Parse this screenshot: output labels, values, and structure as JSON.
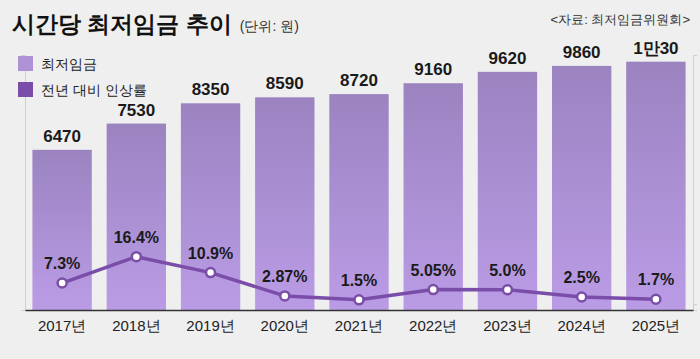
{
  "chart_data": {
    "type": "bar",
    "title": "시간당 최저임금 추이",
    "subtitle": "(단위: 원)",
    "source": "<자료: 최저임금위원회>",
    "categories": [
      "2017년",
      "2018년",
      "2019년",
      "2020년",
      "2021년",
      "2022년",
      "2023년",
      "2024년",
      "2025년"
    ],
    "series": [
      {
        "name": "최저임금",
        "type": "bar",
        "color": "#a48acb",
        "values": [
          6470,
          7530,
          8350,
          8590,
          8720,
          9160,
          9620,
          9860,
          10030
        ],
        "value_labels": [
          "6470",
          "7530",
          "8350",
          "8590",
          "8720",
          "9160",
          "9620",
          "9860",
          "1만30"
        ]
      },
      {
        "name": "전년 대비 인상률",
        "type": "line",
        "axis": "y2",
        "color": "#7a4ea8",
        "marker": "circle",
        "values": [
          7.3,
          16.4,
          10.9,
          2.87,
          1.5,
          5.05,
          5.0,
          2.5,
          1.7
        ],
        "value_labels": [
          "7.3%",
          "16.4%",
          "10.9%",
          "2.87%",
          "1.5%",
          "5.05%",
          "5.0%",
          "2.5%",
          "1.7%"
        ]
      }
    ],
    "ylim": [
      0,
      10300
    ],
    "yticks": [
      0
    ],
    "y2lim": [
      -2,
      86
    ],
    "y2ticks": [
      0
    ],
    "data_labels": true,
    "legend": "top-left",
    "tick_labels": "x",
    "grid": false
  }
}
